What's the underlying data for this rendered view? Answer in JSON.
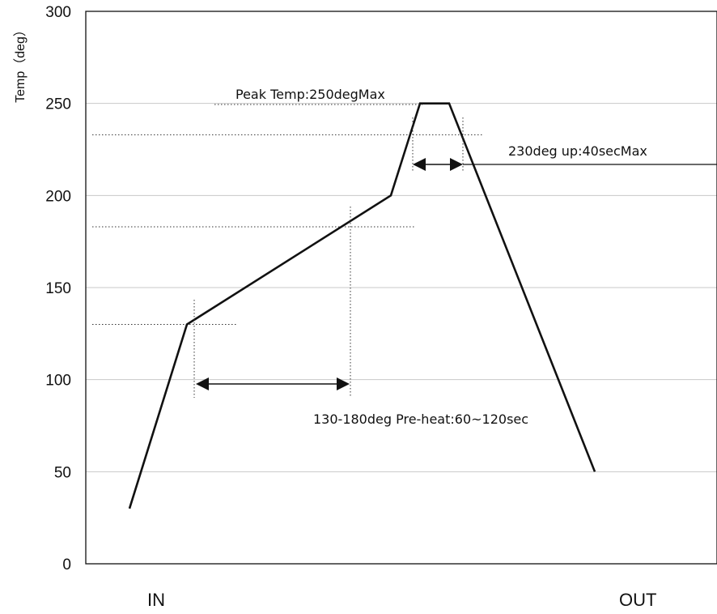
{
  "chart_data": {
    "type": "line",
    "title": "",
    "ylabel": "Temp（deg）",
    "xlabel": "",
    "ylim": [
      0,
      300
    ],
    "yticks": [
      0,
      50,
      100,
      150,
      200,
      250,
      300
    ],
    "grid": true,
    "x_categories": [
      "IN",
      "OUT"
    ],
    "series": [
      {
        "temps": [
          30,
          130,
          200,
          250,
          250,
          50
        ]
      }
    ],
    "reference_temps": [
      130,
      183,
      233
    ],
    "annotations": {
      "peak": "Peak Temp:250degMax",
      "above230": "230deg up:40secMax",
      "preheat": "130-180deg  Pre-heat:60~120sec"
    }
  }
}
